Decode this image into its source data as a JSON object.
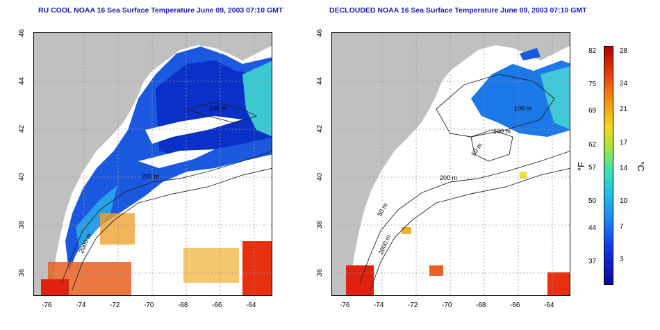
{
  "panels": [
    {
      "title": "RU COOL NOAA 16 Sea Surface Temperature June 09, 2003 07:10 GMT",
      "contour_labels": [
        "100 m",
        "200 m",
        "2000 m"
      ]
    },
    {
      "title": "DECLOUDED NOAA 16 Sea Surface Temperature June 09, 2003 07:10 GMT",
      "contour_labels": [
        "100 m",
        "100 m",
        "50 m",
        "200 m",
        "50 m",
        "2000 m"
      ]
    }
  ],
  "axes": {
    "x_ticks": [
      "-76",
      "-74",
      "-72",
      "-70",
      "-68",
      "-66",
      "-64"
    ],
    "y_ticks": [
      "46",
      "44",
      "42",
      "40",
      "38",
      "36"
    ]
  },
  "colorbar": {
    "fahrenheit_ticks": [
      "82",
      "75",
      "69",
      "62",
      "57",
      "50",
      "44",
      "37"
    ],
    "celsius_ticks": [
      "28",
      "24",
      "21",
      "17",
      "14",
      "10",
      "7",
      "3"
    ],
    "left_unit": "°F",
    "right_unit": "°C"
  }
}
